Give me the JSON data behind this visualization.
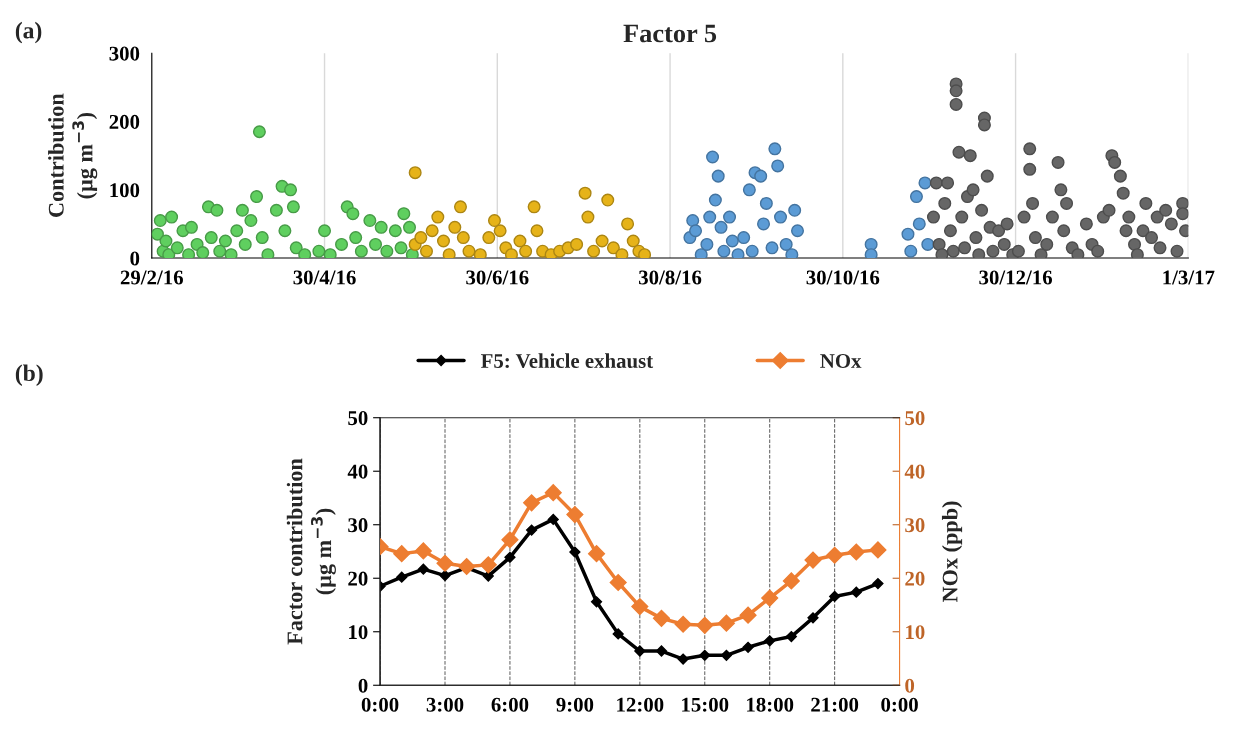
{
  "chart_data": [
    {
      "type": "scatter",
      "title": "Factor 5",
      "ylabel": "Contribution\n(µg m$^{−3}$)",
      "annotations": [
        "(a)"
      ],
      "marker": "circle",
      "grid": "x",
      "xlim": [
        "2016-02-29",
        "2017-03-01"
      ],
      "xticks": [
        {
          "value": "2016-02-29",
          "label": "29/2/16"
        },
        {
          "value": "2016-04-30",
          "label": "30/4/16"
        },
        {
          "value": "2016-06-30",
          "label": "30/6/16"
        },
        {
          "value": "2016-08-30",
          "label": "30/8/16"
        },
        {
          "value": "2016-10-30",
          "label": "30/10/16"
        },
        {
          "value": "2016-12-30",
          "label": "30/12/16"
        },
        {
          "value": "2017-03-01",
          "label": "1/3/17"
        }
      ],
      "ylim": [
        0,
        300
      ],
      "yticks": [
        0,
        100,
        200,
        300
      ],
      "series": [
        {
          "color": "#5fcf5f",
          "x": [
            "2016-03-02",
            "2016-03-03",
            "2016-03-04",
            "2016-03-05",
            "2016-03-06",
            "2016-03-07",
            "2016-03-09",
            "2016-03-11",
            "2016-03-13",
            "2016-03-14",
            "2016-03-16",
            "2016-03-18",
            "2016-03-20",
            "2016-03-21",
            "2016-03-23",
            "2016-03-24",
            "2016-03-26",
            "2016-03-28",
            "2016-03-30",
            "2016-04-01",
            "2016-04-02",
            "2016-04-04",
            "2016-04-06",
            "2016-04-07",
            "2016-04-08",
            "2016-04-10",
            "2016-04-13",
            "2016-04-15",
            "2016-04-16",
            "2016-04-18",
            "2016-04-19",
            "2016-04-20",
            "2016-04-23",
            "2016-04-28",
            "2016-04-30",
            "2016-05-02",
            "2016-05-06",
            "2016-05-08",
            "2016-05-10",
            "2016-05-11",
            "2016-05-13",
            "2016-05-16",
            "2016-05-18",
            "2016-05-20",
            "2016-05-22",
            "2016-05-25",
            "2016-05-27",
            "2016-05-28",
            "2016-05-30",
            "2016-05-31"
          ],
          "values": [
            35,
            55,
            10,
            25,
            5,
            60,
            15,
            40,
            5,
            45,
            20,
            8,
            75,
            30,
            70,
            10,
            25,
            5,
            40,
            70,
            20,
            55,
            90,
            185,
            30,
            5,
            70,
            105,
            40,
            100,
            75,
            15,
            5,
            10,
            40,
            5,
            20,
            75,
            65,
            30,
            10,
            55,
            20,
            45,
            10,
            40,
            15,
            65,
            45,
            5
          ]
        },
        {
          "color": "#e6b319",
          "x": [
            "2016-06-01",
            "2016-06-01",
            "2016-06-03",
            "2016-06-05",
            "2016-06-07",
            "2016-06-09",
            "2016-06-11",
            "2016-06-13",
            "2016-06-15",
            "2016-06-17",
            "2016-06-18",
            "2016-06-20",
            "2016-06-24",
            "2016-06-27",
            "2016-06-29",
            "2016-07-01",
            "2016-07-03",
            "2016-07-05",
            "2016-07-08",
            "2016-07-10",
            "2016-07-13",
            "2016-07-14",
            "2016-07-16",
            "2016-07-19",
            "2016-07-22",
            "2016-07-25",
            "2016-07-28",
            "2016-07-31",
            "2016-08-01",
            "2016-08-03",
            "2016-08-06",
            "2016-08-08",
            "2016-08-10",
            "2016-08-13",
            "2016-08-15",
            "2016-08-17",
            "2016-08-19",
            "2016-08-21"
          ],
          "values": [
            125,
            20,
            30,
            10,
            40,
            60,
            25,
            5,
            45,
            75,
            30,
            10,
            5,
            30,
            55,
            40,
            15,
            5,
            25,
            10,
            75,
            40,
            10,
            5,
            10,
            15,
            20,
            95,
            60,
            10,
            25,
            85,
            15,
            5,
            50,
            25,
            10,
            5
          ]
        },
        {
          "color": "#5b9bd5",
          "x": [
            "2016-09-06",
            "2016-09-07",
            "2016-09-08",
            "2016-09-10",
            "2016-09-12",
            "2016-09-13",
            "2016-09-14",
            "2016-09-15",
            "2016-09-16",
            "2016-09-17",
            "2016-09-18",
            "2016-09-20",
            "2016-09-21",
            "2016-09-23",
            "2016-09-25",
            "2016-09-27",
            "2016-09-28",
            "2016-09-29",
            "2016-10-01",
            "2016-10-02",
            "2016-10-03",
            "2016-10-05",
            "2016-10-06",
            "2016-10-07",
            "2016-10-08",
            "2016-10-10",
            "2016-10-12",
            "2016-10-13",
            "2016-10-14",
            "2016-11-09",
            "2016-11-09",
            "2016-11-22",
            "2016-11-23",
            "2016-11-25",
            "2016-11-26",
            "2016-11-28",
            "2016-11-29"
          ],
          "values": [
            30,
            55,
            40,
            5,
            20,
            60,
            148,
            85,
            120,
            45,
            10,
            60,
            25,
            5,
            30,
            100,
            10,
            125,
            120,
            50,
            80,
            15,
            160,
            135,
            60,
            20,
            5,
            70,
            40,
            20,
            5,
            35,
            10,
            90,
            50,
            110,
            20
          ]
        },
        {
          "color": "#666666",
          "x": [
            "2016-12-01",
            "2016-12-02",
            "2016-12-03",
            "2016-12-04",
            "2016-12-05",
            "2016-12-06",
            "2016-12-07",
            "2016-12-08",
            "2016-12-09",
            "2016-12-09",
            "2016-12-09",
            "2016-12-10",
            "2016-12-11",
            "2016-12-12",
            "2016-12-13",
            "2016-12-14",
            "2016-12-15",
            "2016-12-16",
            "2016-12-17",
            "2016-12-18",
            "2016-12-19",
            "2016-12-19",
            "2016-12-20",
            "2016-12-21",
            "2016-12-22",
            "2016-12-24",
            "2016-12-26",
            "2016-12-27",
            "2016-12-29",
            "2016-12-31",
            "2017-01-02",
            "2017-01-04",
            "2017-01-04",
            "2017-01-05",
            "2017-01-06",
            "2017-01-08",
            "2017-01-10",
            "2017-01-12",
            "2017-01-14",
            "2017-01-15",
            "2017-01-16",
            "2017-01-17",
            "2017-01-19",
            "2017-01-21",
            "2017-01-24",
            "2017-01-26",
            "2017-01-28",
            "2017-01-30",
            "2017-02-01",
            "2017-02-02",
            "2017-02-03",
            "2017-02-05",
            "2017-02-06",
            "2017-02-07",
            "2017-02-08",
            "2017-02-10",
            "2017-02-11",
            "2017-02-13",
            "2017-02-14",
            "2017-02-16",
            "2017-02-18",
            "2017-02-19",
            "2017-02-21",
            "2017-02-23",
            "2017-02-25",
            "2017-02-27",
            "2017-02-27",
            "2017-02-28"
          ],
          "values": [
            60,
            110,
            20,
            5,
            80,
            110,
            40,
            10,
            255,
            245,
            225,
            155,
            60,
            15,
            90,
            150,
            100,
            30,
            5,
            70,
            205,
            195,
            120,
            45,
            10,
            40,
            20,
            50,
            5,
            10,
            60,
            160,
            130,
            80,
            30,
            5,
            20,
            60,
            140,
            100,
            40,
            80,
            15,
            5,
            50,
            20,
            10,
            60,
            70,
            150,
            140,
            120,
            95,
            40,
            60,
            20,
            5,
            40,
            80,
            30,
            60,
            15,
            70,
            50,
            10,
            80,
            65,
            40
          ]
        }
      ]
    },
    {
      "type": "line",
      "xlabel": null,
      "ylabel": "Factor contribution\n(µg m$^{−3}$)",
      "y2label": "NOx (ppb)",
      "annotations": [
        "(b)"
      ],
      "marker": "diamond",
      "line_style": "solid",
      "grid": "x",
      "legend": "top",
      "x": [
        0,
        1,
        2,
        3,
        4,
        5,
        6,
        7,
        8,
        9,
        10,
        11,
        12,
        13,
        14,
        15,
        16,
        17,
        18,
        19,
        20,
        21,
        22,
        23
      ],
      "xlim": [
        0,
        24
      ],
      "xticks": [
        {
          "value": 0,
          "label": "0:00"
        },
        {
          "value": 3,
          "label": "3:00"
        },
        {
          "value": 6,
          "label": "6:00"
        },
        {
          "value": 9,
          "label": "9:00"
        },
        {
          "value": 12,
          "label": "12:00"
        },
        {
          "value": 15,
          "label": "15:00"
        },
        {
          "value": 18,
          "label": "18:00"
        },
        {
          "value": 21,
          "label": "21:00"
        },
        {
          "value": 24,
          "label": "0:00"
        }
      ],
      "ylim": [
        0,
        50
      ],
      "yticks": [
        0,
        10,
        20,
        30,
        40,
        50
      ],
      "y2lim": [
        0,
        50
      ],
      "y2ticks": [
        0,
        10,
        20,
        30,
        40,
        50
      ],
      "series": [
        {
          "name": "F5: Vehicle exhaust",
          "color": "#000000",
          "values": [
            18.5,
            20.2,
            21.7,
            20.5,
            22.0,
            20.4,
            23.9,
            29.0,
            31.0,
            24.9,
            15.6,
            9.6,
            6.4,
            6.4,
            4.9,
            5.6,
            5.6,
            7.1,
            8.3,
            9.1,
            12.6,
            16.6,
            17.4,
            19.0
          ]
        },
        {
          "name": "NOx",
          "color": "#ed7d31",
          "axis": "y2",
          "values": [
            25.9,
            24.6,
            25.1,
            22.8,
            22.2,
            22.5,
            27.2,
            34.1,
            36.0,
            31.9,
            24.6,
            19.2,
            14.7,
            12.5,
            11.4,
            11.2,
            11.6,
            13.1,
            16.3,
            19.5,
            23.4,
            24.3,
            24.9,
            25.3
          ]
        }
      ]
    }
  ]
}
